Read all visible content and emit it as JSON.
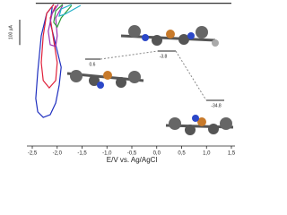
{
  "chart_data": {
    "type": "line",
    "x_label": "E/V vs. Ag/AgCl",
    "xlim": [
      -2.5,
      1.5
    ],
    "xticks": [
      {
        "value": -2.5,
        "label": "-2,5"
      },
      {
        "value": -2.0,
        "label": "-2,0"
      },
      {
        "value": -1.5,
        "label": "-1,5"
      },
      {
        "value": -1.0,
        "label": "-1,0"
      },
      {
        "value": -0.5,
        "label": "-0,5"
      },
      {
        "value": 0.0,
        "label": "0,0"
      },
      {
        "value": 0.5,
        "label": "0,5"
      },
      {
        "value": 1.0,
        "label": "1,0"
      },
      {
        "value": 1.5,
        "label": "1,5"
      }
    ],
    "ylim": [
      -560,
      0
    ],
    "scale_bar": {
      "value": 100,
      "label": "100 µA"
    },
    "annotations": [
      "0.6",
      "-3.8",
      "-34.8"
    ],
    "series": [
      {
        "color": "#1f2fbf",
        "x": [
          -2.07,
          -2.21,
          -2.32,
          -2.39,
          -2.43,
          -2.39,
          -2.28,
          -2.14,
          -2.03,
          -1.96,
          -1.92,
          -2.03,
          -2.14,
          -2.1
        ],
        "values": [
          0,
          -35,
          -124,
          -266,
          -372,
          -425,
          -447,
          -436,
          -390,
          -319,
          -248,
          -159,
          -71,
          -11
        ]
      },
      {
        "color": "#e0203a",
        "x": [
          -2.07,
          -2.21,
          -2.28,
          -2.32,
          -2.28,
          -2.16,
          -2.03,
          -2.0,
          -2.07,
          -2.14,
          -2.03
        ],
        "values": [
          0,
          -35,
          -124,
          -230,
          -301,
          -330,
          -301,
          -230,
          -142,
          -53,
          -4
        ]
      },
      {
        "color": "#9b30b0",
        "x": [
          -1.98,
          -2.1,
          -2.18,
          -2.14,
          -2.03,
          -2.0,
          -2.03,
          -1.89
        ],
        "values": [
          0,
          -35,
          -106,
          -159,
          -166,
          -124,
          -53,
          -4
        ]
      },
      {
        "color": "#2e9e3a",
        "x": [
          -1.89,
          -2.03,
          -2.07,
          -2.0,
          -1.92,
          -1.71
        ],
        "values": [
          0,
          -25,
          -71,
          -89,
          -53,
          -4
        ]
      },
      {
        "color": "#20b0c8",
        "x": [
          -1.71,
          -1.92,
          -1.96,
          -1.85,
          -1.53
        ],
        "values": [
          0,
          -18,
          -46,
          -39,
          -4
        ]
      },
      {
        "color": "#333333",
        "x": [
          -2.43,
          1.5
        ],
        "values": [
          5,
          5
        ]
      }
    ]
  }
}
